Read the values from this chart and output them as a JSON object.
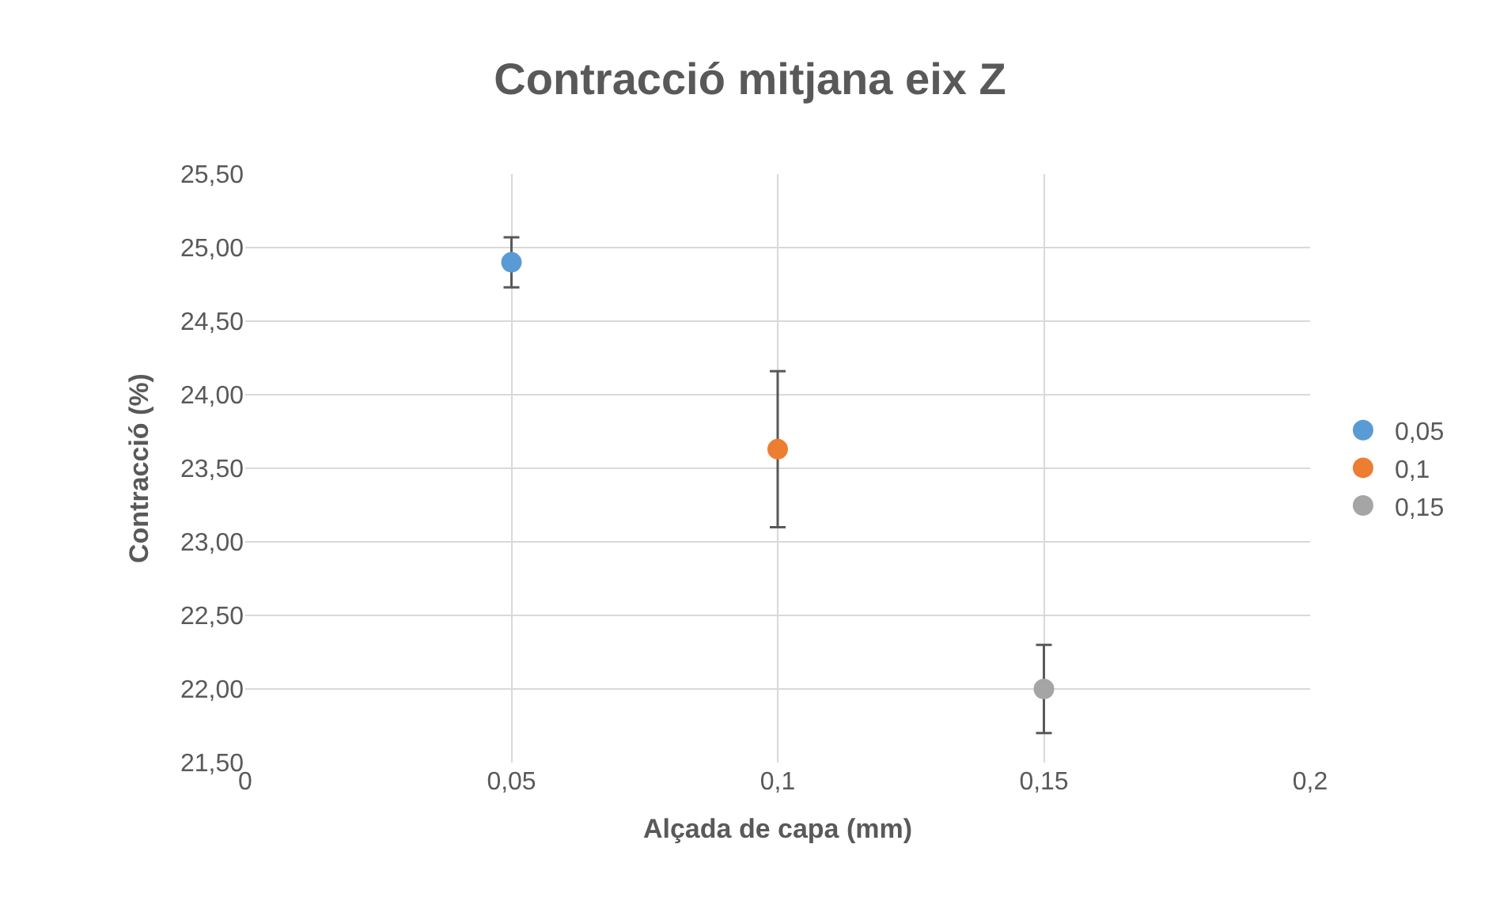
{
  "chart_data": {
    "type": "scatter",
    "title": "Contracció mitjana eix Z",
    "xlabel": "Alçada de capa (mm)",
    "ylabel": "Contracció (%)",
    "series": [
      {
        "name": "0,05",
        "color": "#5b9bd5",
        "x": [
          0.05
        ],
        "values": [
          24.9
        ],
        "errors": [
          0.17
        ]
      },
      {
        "name": "0,1",
        "color": "#ed7d31",
        "x": [
          0.1
        ],
        "values": [
          23.63
        ],
        "errors": [
          0.53
        ]
      },
      {
        "name": "0,15",
        "color": "#a5a5a5",
        "x": [
          0.15
        ],
        "values": [
          22.0
        ],
        "errors": [
          0.3
        ]
      }
    ],
    "xlim": [
      0,
      0.2
    ],
    "xticks": [
      0,
      {
        "value": 0.05,
        "label": "0,05"
      },
      {
        "value": 0.1,
        "label": "0,1"
      },
      {
        "value": 0.15,
        "label": "0,15"
      },
      {
        "value": 0.2,
        "label": "0,2"
      }
    ],
    "ylim": [
      21.5,
      25.5
    ],
    "yticks": [
      {
        "value": 21.5,
        "label": "21,50"
      },
      {
        "value": 22,
        "label": "22,00"
      },
      {
        "value": 22.5,
        "label": "22,50"
      },
      {
        "value": 23,
        "label": "23,00"
      },
      {
        "value": 23.5,
        "label": "23,50"
      },
      {
        "value": 24,
        "label": "24,00"
      },
      {
        "value": 24.5,
        "label": "24,50"
      },
      {
        "value": 25,
        "label": "25,00"
      },
      {
        "value": 25.5,
        "label": "25,50"
      }
    ],
    "grid": true,
    "legend": "right",
    "marker": "circle"
  }
}
